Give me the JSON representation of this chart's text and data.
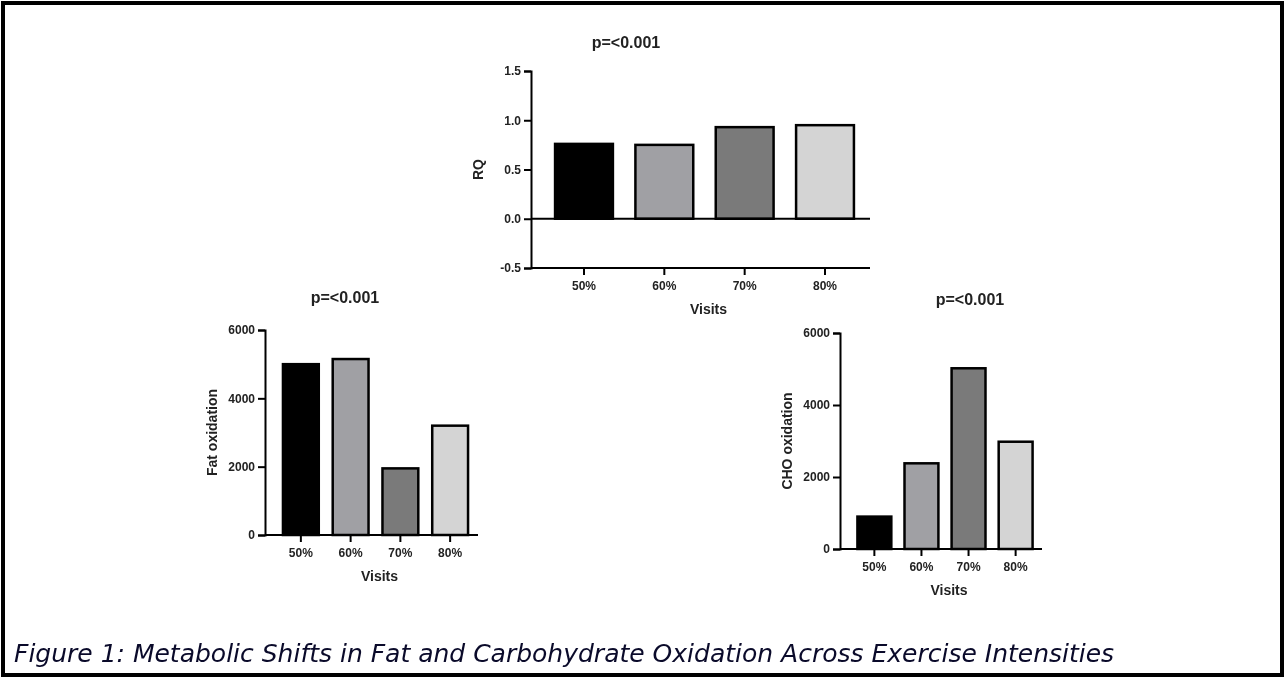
{
  "chart_data": [
    {
      "type": "bar",
      "title": "p=<0.001",
      "xlabel": "Visits",
      "ylabel": "RQ",
      "categories": [
        "50%",
        "60%",
        "70%",
        "80%"
      ],
      "values": [
        0.76,
        0.75,
        0.93,
        0.95
      ],
      "colors": [
        "#000000",
        "#a0a0a4",
        "#7a7a7a",
        "#d4d4d4"
      ],
      "ylim": [
        -0.5,
        1.5
      ],
      "yticks": [
        {
          "value": -0.5,
          "label": "-0.5"
        },
        {
          "value": 0,
          "label": "0.0"
        },
        {
          "value": 0.5,
          "label": "0.5"
        },
        {
          "value": 1,
          "label": "1.0"
        },
        {
          "value": 1.5,
          "label": "1.5"
        }
      ],
      "ref_lines": [
        {
          "axis": "y",
          "value": 0,
          "color": "#000000"
        }
      ],
      "annotations": [
        "Figure 1: Metabolic Shifts in Fat and Carbohydrate Oxidation Across Exercise Intensities"
      ]
    },
    {
      "type": "bar",
      "title": "p=<0.001",
      "xlabel": "Visits",
      "ylabel": "Fat oxidation",
      "categories": [
        "50%",
        "60%",
        "70%",
        "80%"
      ],
      "values": [
        5000,
        5150,
        1950,
        3200
      ],
      "colors": [
        "#000000",
        "#a0a0a4",
        "#7a7a7a",
        "#d4d4d4"
      ],
      "ylim": [
        0,
        6000
      ],
      "yticks": [
        0,
        2000,
        4000,
        6000
      ]
    },
    {
      "type": "bar",
      "title": "p=<0.001",
      "xlabel": "Visits",
      "ylabel": "CHO oxidation",
      "categories": [
        "50%",
        "60%",
        "70%",
        "80%"
      ],
      "values": [
        900,
        2380,
        5020,
        2980
      ],
      "colors": [
        "#000000",
        "#a0a0a4",
        "#7a7a7a",
        "#d4d4d4"
      ],
      "ylim": [
        0,
        6000
      ],
      "yticks": [
        0,
        2000,
        4000,
        6000
      ]
    }
  ]
}
